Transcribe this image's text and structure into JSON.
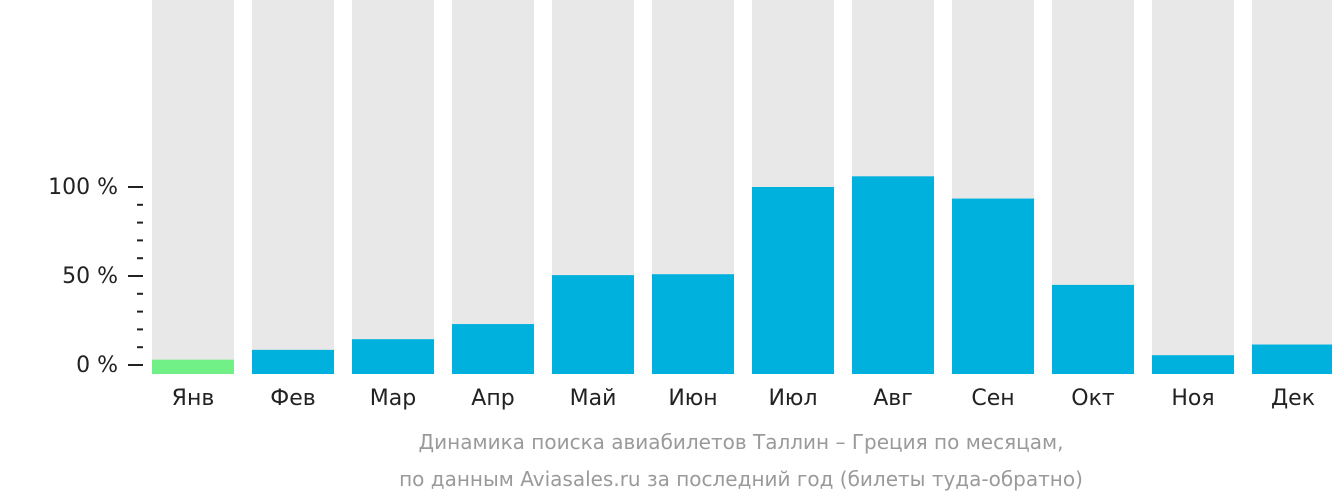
{
  "chart_data": {
    "type": "bar",
    "categories": [
      "Янв",
      "Фев",
      "Мар",
      "Апр",
      "Май",
      "Июн",
      "Июл",
      "Авг",
      "Сен",
      "Окт",
      "Ноя",
      "Дек"
    ],
    "values": [
      3,
      8.5,
      14.5,
      23,
      50.5,
      51,
      100,
      106,
      93.5,
      45,
      5.5,
      11.5
    ],
    "highlight_index": 0,
    "yticks": [
      "0 %",
      "50 %",
      "100 %"
    ],
    "ytick_values": [
      0,
      50,
      100
    ],
    "ylim": [
      0,
      100
    ],
    "colors": {
      "bar": "#00b0dd",
      "highlight": "#71f087",
      "background_bar": "#e8e8e8",
      "axis": "#222222"
    },
    "title": "Динамика поиска авиабилетов Таллин – Греция по месяцам,",
    "subtitle": "по данным Aviasales.ru за последний год (билеты туда-обратно)"
  }
}
